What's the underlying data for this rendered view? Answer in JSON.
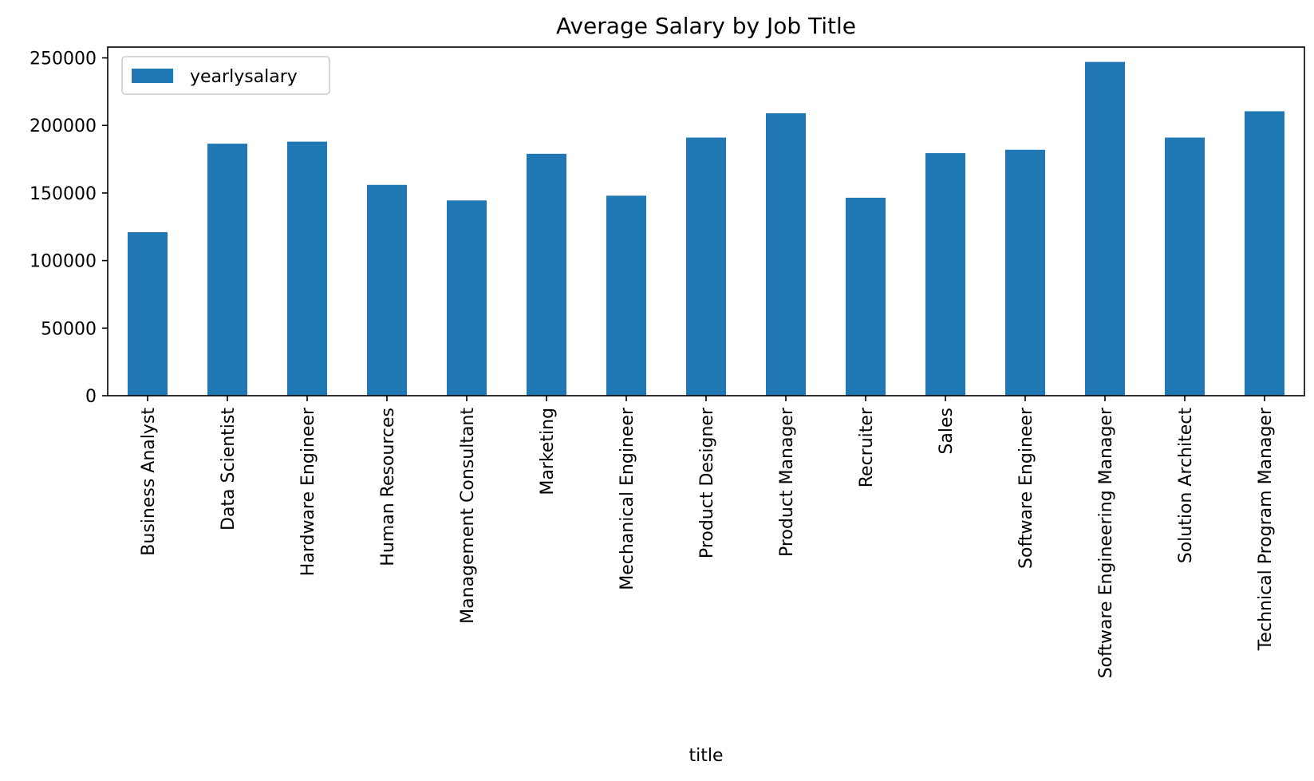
{
  "chart_data": {
    "type": "bar",
    "title": "Average Salary by Job Title",
    "xlabel": "title",
    "ylabel": "",
    "categories": [
      "Business Analyst",
      "Data Scientist",
      "Hardware Engineer",
      "Human Resources",
      "Management Consultant",
      "Marketing",
      "Mechanical Engineer",
      "Product Designer",
      "Product Manager",
      "Recruiter",
      "Sales",
      "Software Engineer",
      "Software Engineering Manager",
      "Solution Architect",
      "Technical Program Manager"
    ],
    "series": [
      {
        "name": "yearlysalary",
        "color": "#1f77b4",
        "values": [
          121000,
          186500,
          188000,
          156000,
          144500,
          179000,
          148000,
          191000,
          209000,
          146500,
          179500,
          182000,
          247000,
          191000,
          210500
        ]
      }
    ],
    "ylim": [
      0,
      258000
    ],
    "yticks": [
      0,
      50000,
      100000,
      150000,
      200000,
      250000
    ],
    "ytick_labels": [
      "0",
      "50000",
      "100000",
      "150000",
      "200000",
      "250000"
    ],
    "legend_position": "top-left",
    "grid": false
  }
}
